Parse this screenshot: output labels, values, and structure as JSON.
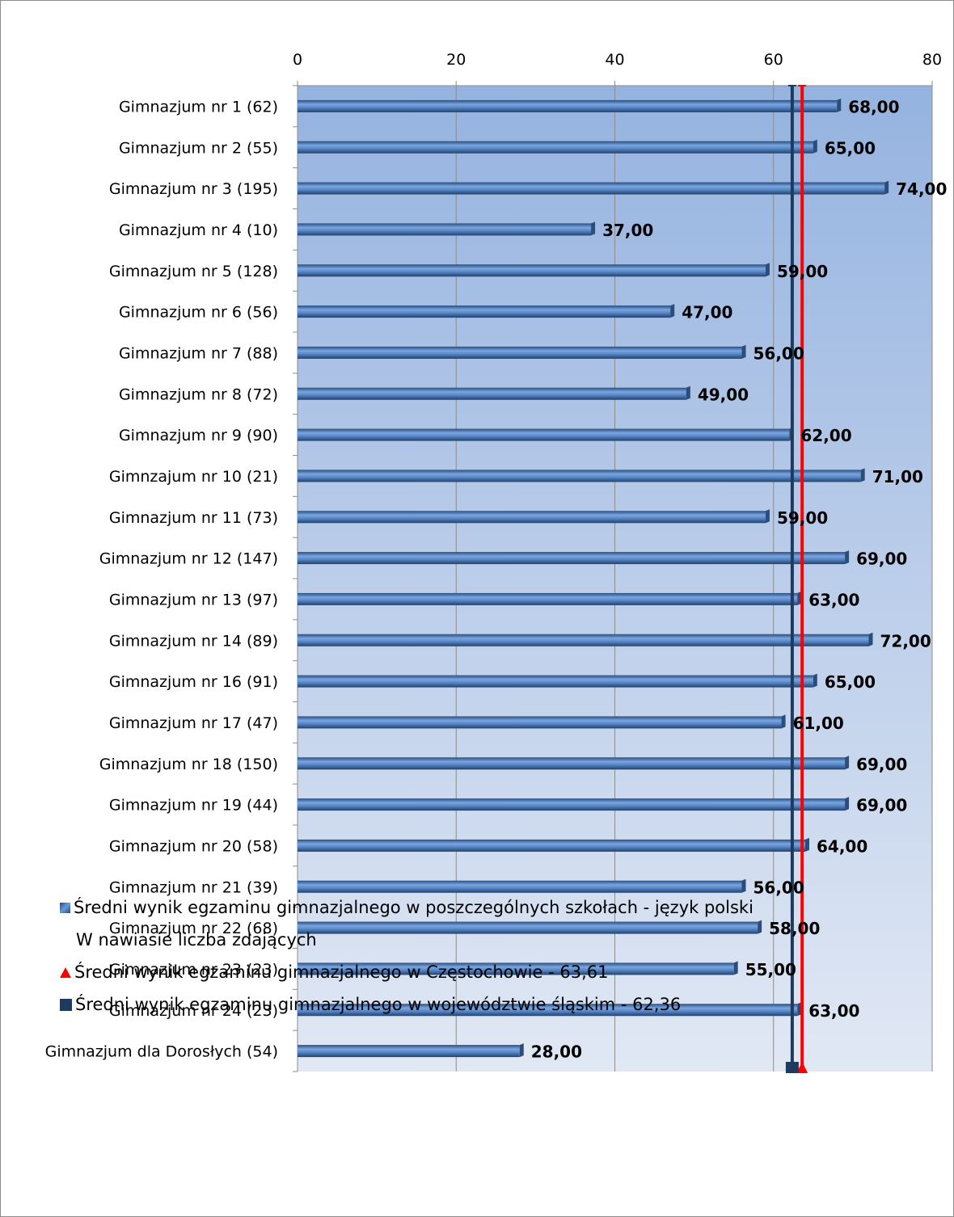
{
  "chart_data": {
    "type": "bar",
    "orientation": "horizontal",
    "categories": [
      "Gimnazjum nr 1 (62)",
      "Gimnazjum nr 2 (55)",
      "Gimnazjum nr 3 (195)",
      "Gimnazjum nr 4 (10)",
      "Gimnazjum nr 5 (128)",
      "Gimnazjum nr 6 (56)",
      "Gimnazjum nr 7 (88)",
      "Gimnazjum nr 8 (72)",
      "Gimnazjum nr 9 (90)",
      "Gimnzajum nr 10 (21)",
      "Gimnazjum nr 11 (73)",
      "Gimnazjum nr 12 (147)",
      "Gimnazjum nr 13 (97)",
      "Gimnazjum nr 14 (89)",
      "Gimnazjum nr 16 (91)",
      "Gimnazjum nr 17 (47)",
      "Gimnazjum nr 18 (150)",
      "Gimnazjum nr 19 (44)",
      "Gimnazjum nr 20 (58)",
      "Gimnazjum nr 21 (39)",
      "Gimnazjum nr 22 (68)",
      "Gimnazjum nr 23 (23)",
      "Gimnazjum nr 24 (23)",
      "Gimnazjum dla Dorosłych (54)"
    ],
    "series": [
      {
        "name": "Średni wynik egzaminu gimnazjalnego w poszczególnych szkołach - język polski",
        "values": [
          68,
          65,
          74,
          37,
          59,
          47,
          56,
          49,
          62,
          71,
          59,
          69,
          63,
          72,
          65,
          61,
          69,
          69,
          64,
          56,
          58,
          55,
          63,
          28
        ],
        "labels": [
          "68,00",
          "65,00",
          "74,00",
          "37,00",
          "59,00",
          "47,00",
          "56,00",
          "49,00",
          "62,00",
          "71,00",
          "59,00",
          "69,00",
          "63,00",
          "72,00",
          "65,00",
          "61,00",
          "69,00",
          "69,00",
          "64,00",
          "56,00",
          "58,00",
          "55,00",
          "63,00",
          "28,00"
        ],
        "color": "#4f81bd"
      }
    ],
    "reference_lines": [
      {
        "name": "Średni wynik egzaminu gimnazjalnego w Częstochowie - 63,61",
        "value": 63.61,
        "color": "#ff0000",
        "marker": "triangle"
      },
      {
        "name": "Średni wynik egzaminu gimnazjalnego w województwie śląskim - 62,36",
        "value": 62.36,
        "color": "#1f3a5f",
        "marker": "square"
      }
    ],
    "xlim": [
      0,
      80
    ],
    "x_ticks": [
      "0",
      "20",
      "40",
      "60",
      "80"
    ],
    "x_axis_position": "top",
    "grid": true,
    "legend_position": "bottom",
    "legend_note": "W nawiasie liczba zdających",
    "colors": {
      "plot_bg_top": "#95b3e0",
      "plot_bg_bottom": "#dfe7f3",
      "bar": "#4f81bd",
      "gridline": "#8c8c8c"
    }
  }
}
